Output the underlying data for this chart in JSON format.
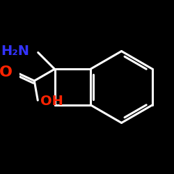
{
  "background_color": "#000000",
  "bond_color": "#ffffff",
  "bond_width": 2.2,
  "h2n_color": "#3333ff",
  "o_color": "#ff2200",
  "oh_color": "#ff2200",
  "h2n_text": "H₂N",
  "o_text": "O",
  "oh_text": "OH",
  "h2n_fontsize": 14,
  "o_fontsize": 16,
  "oh_fontsize": 14,
  "figsize": [
    2.5,
    2.5
  ],
  "dpi": 100
}
